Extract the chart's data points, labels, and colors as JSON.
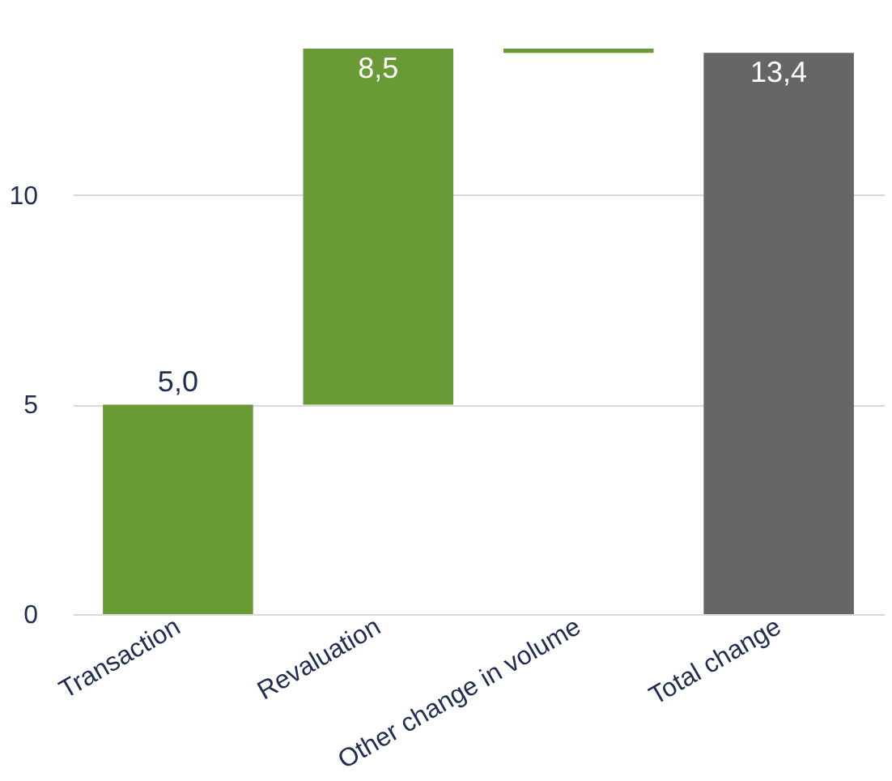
{
  "chart_data": {
    "type": "bar",
    "categories": [
      "Transaction",
      "Revaluation",
      "Other change in volume",
      "Total change"
    ],
    "values": [
      5.0,
      8.5,
      -0.1,
      13.4
    ],
    "base": [
      0,
      5.0,
      13.5,
      0
    ],
    "colors": [
      "#6a9a35",
      "#6a9a35",
      "#6a9a35",
      "#666666"
    ],
    "value_labels": [
      "5,0",
      "8,5",
      null,
      "13,4"
    ],
    "ylim": [
      0,
      13.5
    ],
    "yticks": [
      0,
      5,
      10
    ],
    "grid": "y"
  }
}
